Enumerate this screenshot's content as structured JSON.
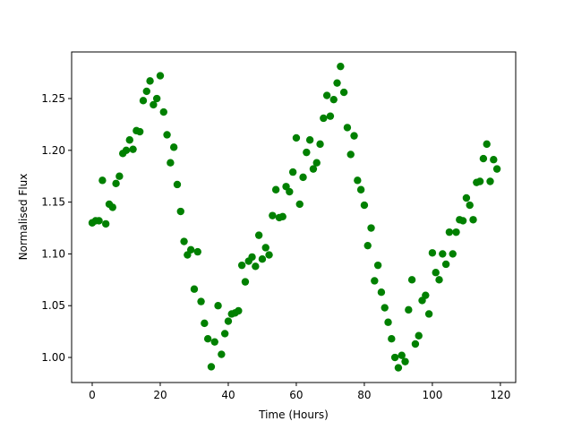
{
  "chart_data": {
    "type": "scatter",
    "x_label": "Time (Hours)",
    "y_label": "Normalised Flux",
    "color": "#008000",
    "x": [
      0,
      1,
      2,
      3,
      4,
      5,
      6,
      7,
      8,
      9,
      10,
      11,
      12,
      13,
      14,
      15,
      16,
      17,
      18,
      19,
      20,
      21,
      22,
      23,
      24,
      25,
      26,
      27,
      28,
      29,
      30,
      31,
      32,
      33,
      34,
      35,
      36,
      37,
      38,
      39,
      40,
      41,
      42,
      43,
      44,
      45,
      46,
      47,
      48,
      49,
      50,
      51,
      52,
      53,
      54,
      55,
      56,
      57,
      58,
      59,
      60,
      61,
      62,
      63,
      64,
      65,
      66,
      67,
      68,
      69,
      70,
      71,
      72,
      73,
      74,
      75,
      76,
      77,
      78,
      79,
      80,
      81,
      82,
      83,
      84,
      85,
      86,
      87,
      88,
      89,
      90,
      91,
      92,
      93,
      94,
      95,
      96,
      97,
      98,
      99,
      100,
      101,
      102,
      103,
      104,
      105,
      106,
      107,
      108,
      109,
      110,
      111,
      112,
      113,
      114,
      115,
      116,
      117,
      118,
      119
    ],
    "values": [
      1.13,
      1.132,
      1.132,
      1.171,
      1.129,
      1.148,
      1.145,
      1.168,
      1.175,
      1.197,
      1.2,
      1.21,
      1.201,
      1.219,
      1.218,
      1.248,
      1.257,
      1.267,
      1.244,
      1.25,
      1.272,
      1.237,
      1.215,
      1.188,
      1.203,
      1.167,
      1.141,
      1.112,
      1.099,
      1.104,
      1.066,
      1.102,
      1.054,
      1.033,
      1.018,
      0.991,
      1.015,
      1.05,
      1.003,
      1.023,
      1.035,
      1.042,
      1.043,
      1.045,
      1.089,
      1.073,
      1.093,
      1.097,
      1.088,
      1.118,
      1.095,
      1.106,
      1.099,
      1.137,
      1.162,
      1.135,
      1.136,
      1.165,
      1.16,
      1.179,
      1.212,
      1.148,
      1.174,
      1.198,
      1.21,
      1.182,
      1.188,
      1.206,
      1.231,
      1.253,
      1.233,
      1.249,
      1.265,
      1.281,
      1.256,
      1.222,
      1.196,
      1.214,
      1.171,
      1.162,
      1.147,
      1.108,
      1.125,
      1.074,
      1.089,
      1.063,
      1.048,
      1.034,
      1.018,
      1.0,
      0.99,
      1.002,
      0.996,
      1.046,
      1.075,
      1.013,
      1.021,
      1.055,
      1.06,
      1.042,
      1.101,
      1.082,
      1.075,
      1.1,
      1.09,
      1.121,
      1.1,
      1.121,
      1.133,
      1.132,
      1.154,
      1.147,
      1.133,
      1.169,
      1.17,
      1.192,
      1.206,
      1.17,
      1.191,
      1.182
    ],
    "xlim": [
      -6.05,
      124.5
    ],
    "xticks": [
      0,
      20,
      40,
      60,
      80,
      100,
      120
    ],
    "ylim": [
      0.9758,
      1.295
    ],
    "yticks": [
      {
        "value": 1.0,
        "label": "1.00"
      },
      1.05,
      {
        "value": 1.1,
        "label": "1.10"
      },
      1.15,
      {
        "value": 1.2,
        "label": "1.20"
      },
      1.25
    ]
  }
}
